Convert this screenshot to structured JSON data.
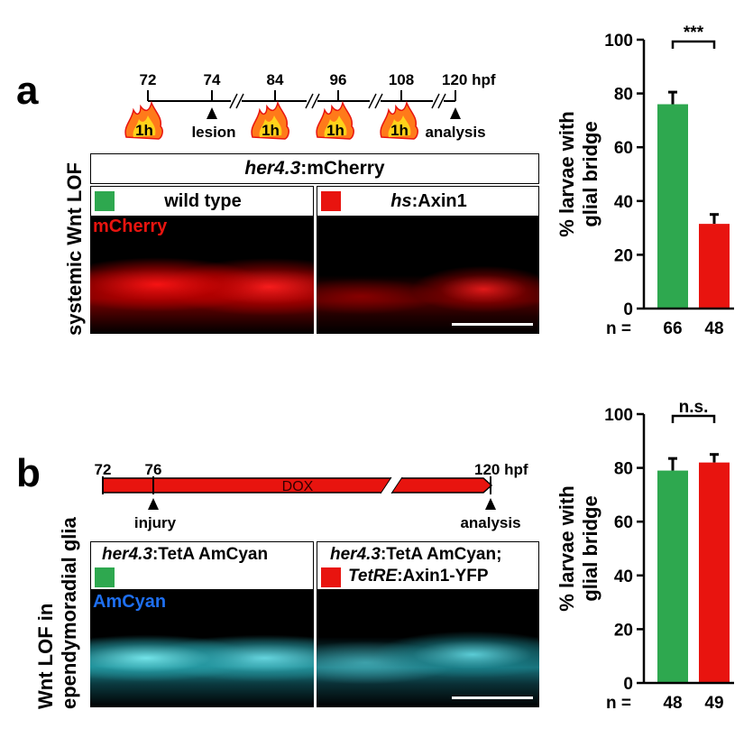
{
  "panel_a": {
    "letter": "a",
    "side_label": "systemic Wnt LOF",
    "timeline": {
      "ticks": [
        "72",
        "74",
        "84",
        "96",
        "108",
        "120 hpf"
      ],
      "events": {
        "lesion": "lesion",
        "analysis": "analysis"
      },
      "heat_label": "1h"
    },
    "title_italic": "her4.3",
    "title_rest": ":mCherry",
    "cond_wt": "wild type",
    "cond_hs_italic": "hs",
    "cond_hs_rest": ":Axin1",
    "image_channel": "mCherry"
  },
  "panel_b": {
    "letter": "b",
    "side_label_1": "Wnt LOF in",
    "side_label_2": "ependymoradial glia",
    "timeline": {
      "ticks": [
        "72",
        "76",
        "120 hpf"
      ],
      "bar_label": "DOX",
      "events": {
        "injury": "injury",
        "analysis": "analysis"
      }
    },
    "cond1_italic": "her4.3",
    "cond1_rest": ":TetA AmCyan",
    "cond2_line1_italic": "her4.3",
    "cond2_line1_rest": ":TetA AmCyan;",
    "cond2_line2_italic": "TetRE",
    "cond2_line2_rest": ":Axin1-YFP",
    "image_channel": "AmCyan"
  },
  "colors": {
    "green": "#2ea84f",
    "red": "#e8140f",
    "mcherry_label": "#e8140f",
    "amcyan_label": "#1e6ff0"
  },
  "chart_data": [
    {
      "type": "bar",
      "categories": [
        "wild type",
        "hs:Axin1"
      ],
      "values": [
        76,
        31.5
      ],
      "errors": [
        4.5,
        3.5
      ],
      "colors": [
        "#2ea84f",
        "#e8140f"
      ],
      "n_prefix": "n =",
      "n_values": [
        "66",
        "48"
      ],
      "significance": "***",
      "ylabel_1": "% larvae with",
      "ylabel_2": "glial bridge",
      "ylim": [
        0,
        100
      ],
      "yticks": [
        "0",
        "20",
        "40",
        "60",
        "80",
        "100"
      ]
    },
    {
      "type": "bar",
      "categories": [
        "her4.3:TetA AmCyan",
        "her4.3:TetA AmCyan; TetRE:Axin1-YFP"
      ],
      "values": [
        79,
        82
      ],
      "errors": [
        4.5,
        3
      ],
      "colors": [
        "#2ea84f",
        "#e8140f"
      ],
      "n_prefix": "n =",
      "n_values": [
        "48",
        "49"
      ],
      "significance": "n.s.",
      "ylabel_1": "% larvae with",
      "ylabel_2": "glial bridge",
      "ylim": [
        0,
        100
      ],
      "yticks": [
        "0",
        "20",
        "40",
        "60",
        "80",
        "100"
      ]
    }
  ]
}
